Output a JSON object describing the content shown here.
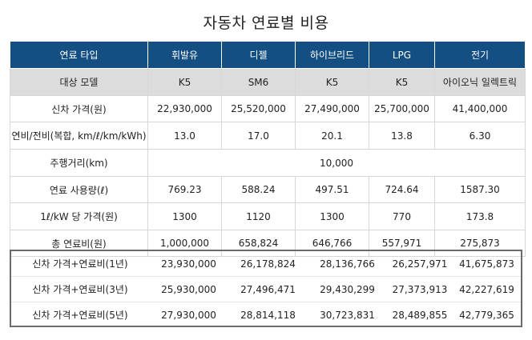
{
  "title": "자동차 연료별 비용",
  "header": [
    "연료 타입",
    "휘발유",
    "디젤",
    "하이브리드",
    "LPG",
    "전기"
  ],
  "rows": [
    {
      "label": "대상 모델",
      "values": [
        "K5",
        "SM6",
        "K5",
        "K5",
        "아이오닉 일렉트릭"
      ]
    },
    {
      "label": "신차 가격(원)",
      "values": [
        "22,930,000",
        "25,520,000",
        "27,490,000",
        "25,700,000",
        "41,400,000"
      ]
    },
    {
      "label": "연비/전비(복합, km/ℓ/km/kWh)",
      "values": [
        "13.0",
        "17.0",
        "20.1",
        "13.8",
        "6.30"
      ]
    },
    {
      "label": "주행거리(km)",
      "merged": "10,000"
    },
    {
      "label": "연료 사용량(ℓ)",
      "values": [
        "769.23",
        "588.24",
        "497.51",
        "724.64",
        "1587.30"
      ]
    },
    {
      "label": "1ℓ/kW 당 가격(원)",
      "values": [
        "1300",
        "1120",
        "1300",
        "770",
        "173.8"
      ]
    },
    {
      "label": "총 연료비(원)",
      "values": [
        "1,000,000",
        "658,824",
        "646,766",
        "557,971",
        "275,873"
      ]
    }
  ],
  "totals": [
    {
      "label": "신차 가격+연료비(1년)",
      "values": [
        "23,930,000",
        "26,178,824",
        "28,136,766",
        "26,257,971",
        "41,675,873"
      ]
    },
    {
      "label": "신차 가격+연료비(3년)",
      "values": [
        "25,930,000",
        "27,496,471",
        "29,430,299",
        "27,373,913",
        "42,227,619"
      ]
    },
    {
      "label": "신차 가격+연료비(5년)",
      "values": [
        "27,930,000",
        "28,814,118",
        "30,723,831",
        "28,489,855",
        "42,779,365"
      ]
    }
  ]
}
